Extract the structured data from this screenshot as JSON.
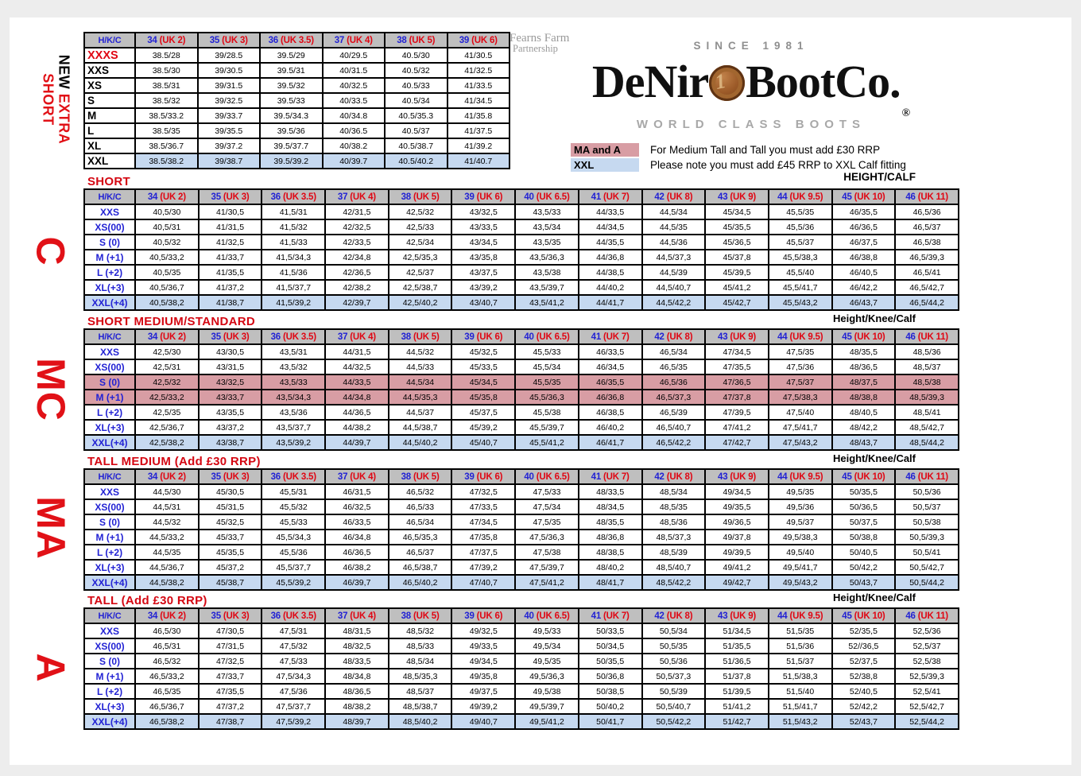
{
  "colors": {
    "accent_red": "#e00613",
    "accent_blue": "#2222d4",
    "header_gray": "#bfbfbf",
    "row_blue": "#c6d9f0",
    "row_pink": "#d89da4"
  },
  "side_labels": {
    "extra_short_black": "NEW",
    "extra_short_red": " EXTRA",
    "extra_short_line2": "SHORT",
    "short_code": "C",
    "short_medium_code": "MC",
    "tall_medium_code": "MA",
    "tall_code": "A"
  },
  "brand": {
    "partnership_line1": "Fearns Farm",
    "partnership_line2": "Partnership",
    "since": "SINCE 1981",
    "name_part1": "DeNir",
    "coin_digit": "1",
    "name_part2": "BootCo.",
    "registered": "®",
    "tagline": "WORLD CLASS BOOTS"
  },
  "notes": {
    "ma_a_key": "MA and A",
    "ma_a_text": "For Medium Tall and Tall you must add £30 RRP",
    "xxl_key": "XXL",
    "xxl_text": "Please note you must add £45 RRP to XXL Calf fitting",
    "height_calf": "HEIGHT/CALF",
    "height_knee_calf": "Height/Knee/Calf"
  },
  "tables": [
    {
      "id": "new-extra-short",
      "title": "",
      "header_label": "H/K/C",
      "plain_labels": true,
      "columns": [
        {
          "eu": "34",
          "uk": "(UK 2)"
        },
        {
          "eu": "35",
          "uk": "(UK 3)"
        },
        {
          "eu": "36",
          "uk": "(UK 3.5)"
        },
        {
          "eu": "37",
          "uk": "(UK 4)"
        },
        {
          "eu": "38",
          "uk": "(UK 5)"
        },
        {
          "eu": "39",
          "uk": "(UK 6)"
        }
      ],
      "rows": [
        {
          "label": "XXXS",
          "style": "xxxs",
          "bg": "white",
          "cells": [
            "38.5/28",
            "39/28.5",
            "39.5/29",
            "40/29.5",
            "40.5/30",
            "41/30.5"
          ]
        },
        {
          "label": "XXS",
          "bg": "white",
          "cells": [
            "38.5/30",
            "39/30.5",
            "39.5/31",
            "40/31.5",
            "40.5/32",
            "41/32.5"
          ]
        },
        {
          "label": "XS",
          "bg": "white",
          "cells": [
            "38.5/31",
            "39/31.5",
            "39.5/32",
            "40/32.5",
            "40.5/33",
            "41/33.5"
          ]
        },
        {
          "label": "S",
          "bg": "white",
          "cells": [
            "38.5/32",
            "39/32.5",
            "39.5/33",
            "40/33.5",
            "40.5/34",
            "41/34.5"
          ]
        },
        {
          "label": "M",
          "bg": "white",
          "cells": [
            "38.5/33.2",
            "39/33.7",
            "39.5/34.3",
            "40/34.8",
            "40.5/35.3",
            "41/35.8"
          ]
        },
        {
          "label": "L",
          "bg": "white",
          "cells": [
            "38.5/35",
            "39/35.5",
            "39.5/36",
            "40/36.5",
            "40.5/37",
            "41/37.5"
          ]
        },
        {
          "label": "XL",
          "bg": "white",
          "cells": [
            "38.5/36.7",
            "39/37.2",
            "39.5/37.7",
            "40/38.2",
            "40.5/38.7",
            "41/39.2"
          ]
        },
        {
          "label": "XXL",
          "bg": "blue",
          "cells": [
            "38.5/38.2",
            "39/38.7",
            "39.5/39.2",
            "40/39.7",
            "40.5/40.2",
            "41/40.7"
          ]
        }
      ]
    },
    {
      "id": "short",
      "title": "SHORT",
      "header_label": "H/K/C",
      "plain_labels": false,
      "columns": [
        {
          "eu": "34",
          "uk": "(UK 2)"
        },
        {
          "eu": "35",
          "uk": "(UK 3)"
        },
        {
          "eu": "36",
          "uk": "(UK 3.5)"
        },
        {
          "eu": "37",
          "uk": "(UK 4)"
        },
        {
          "eu": "38",
          "uk": "(UK 5)"
        },
        {
          "eu": "39",
          "uk": "(UK 6)"
        },
        {
          "eu": "40",
          "uk": "(UK 6.5)"
        },
        {
          "eu": "41",
          "uk": "(UK 7)"
        },
        {
          "eu": "42",
          "uk": "(UK 8)"
        },
        {
          "eu": "43",
          "uk": "(UK 9)"
        },
        {
          "eu": "44",
          "uk": "(UK 9.5)"
        },
        {
          "eu": "45",
          "uk": "(UK 10)"
        },
        {
          "eu": "46",
          "uk": "(UK 11)"
        }
      ],
      "rows": [
        {
          "label": "XXS",
          "bg": "white",
          "cells": [
            "40,5/30",
            "41/30,5",
            "41,5/31",
            "42/31,5",
            "42,5/32",
            "43/32,5",
            "43,5/33",
            "44/33,5",
            "44,5/34",
            "45/34,5",
            "45,5/35",
            "46/35,5",
            "46,5/36"
          ]
        },
        {
          "label": "XS(00)",
          "bg": "white",
          "cells": [
            "40,5/31",
            "41/31,5",
            "41,5/32",
            "42/32,5",
            "42,5/33",
            "43/33,5",
            "43,5/34",
            "44/34,5",
            "44,5/35",
            "45/35,5",
            "45,5/36",
            "46/36,5",
            "46,5/37"
          ]
        },
        {
          "label": "S (0)",
          "bg": "white",
          "cells": [
            "40,5/32",
            "41/32,5",
            "41,5/33",
            "42/33,5",
            "42,5/34",
            "43/34,5",
            "43,5/35",
            "44/35,5",
            "44,5/36",
            "45/36,5",
            "45,5/37",
            "46/37,5",
            "46,5/38"
          ]
        },
        {
          "label": "M (+1)",
          "bg": "white",
          "cells": [
            "40,5/33,2",
            "41/33,7",
            "41,5/34,3",
            "42/34,8",
            "42,5/35,3",
            "43/35,8",
            "43,5/36,3",
            "44/36,8",
            "44,5/37,3",
            "45/37,8",
            "45,5/38,3",
            "46/38,8",
            "46,5/39,3"
          ]
        },
        {
          "label": "L (+2)",
          "bg": "white",
          "cells": [
            "40,5/35",
            "41/35,5",
            "41,5/36",
            "42/36,5",
            "42,5/37",
            "43/37,5",
            "43,5/38",
            "44/38,5",
            "44,5/39",
            "45/39,5",
            "45,5/40",
            "46/40,5",
            "46,5/41"
          ]
        },
        {
          "label": "XL(+3)",
          "bg": "white",
          "cells": [
            "40,5/36,7",
            "41/37,2",
            "41,5/37,7",
            "42/38,2",
            "42,5/38,7",
            "43/39,2",
            "43,5/39,7",
            "44/40,2",
            "44,5/40,7",
            "45/41,2",
            "45,5/41,7",
            "46/42,2",
            "46,5/42,7"
          ]
        },
        {
          "label": "XXL(+4)",
          "bg": "blue",
          "cells": [
            "40,5/38,2",
            "41/38,7",
            "41,5/39,2",
            "42/39,7",
            "42,5/40,2",
            "43/40,7",
            "43,5/41,2",
            "44/41,7",
            "44,5/42,2",
            "45/42,7",
            "45,5/43,2",
            "46/43,7",
            "46,5/44,2"
          ]
        }
      ]
    },
    {
      "id": "short-medium-standard",
      "title": "SHORT MEDIUM/STANDARD",
      "header_label": "H/K/C",
      "plain_labels": false,
      "columns": [
        {
          "eu": "34",
          "uk": "(UK 2)"
        },
        {
          "eu": "35",
          "uk": "(UK 3)"
        },
        {
          "eu": "36",
          "uk": "(UK 3.5)"
        },
        {
          "eu": "37",
          "uk": "(UK 4)"
        },
        {
          "eu": "38",
          "uk": "(UK 5)"
        },
        {
          "eu": "39",
          "uk": "(UK 6)"
        },
        {
          "eu": "40",
          "uk": "(UK 6.5)"
        },
        {
          "eu": "41",
          "uk": "(UK 7)"
        },
        {
          "eu": "42",
          "uk": "(UK 8)"
        },
        {
          "eu": "43",
          "uk": "(UK 9)"
        },
        {
          "eu": "44",
          "uk": "(UK 9.5)"
        },
        {
          "eu": "45",
          "uk": "(UK 10)"
        },
        {
          "eu": "46",
          "uk": "(UK 11)"
        }
      ],
      "rows": [
        {
          "label": "XXS",
          "bg": "white",
          "cells": [
            "42,5/30",
            "43/30,5",
            "43,5/31",
            "44/31,5",
            "44,5/32",
            "45/32,5",
            "45,5/33",
            "46/33,5",
            "46,5/34",
            "47/34,5",
            "47,5/35",
            "48/35,5",
            "48,5/36"
          ]
        },
        {
          "label": "XS(00)",
          "bg": "white",
          "cells": [
            "42,5/31",
            "43/31,5",
            "43,5/32",
            "44/32,5",
            "44,5/33",
            "45/33,5",
            "45,5/34",
            "46/34,5",
            "46,5/35",
            "47/35,5",
            "47,5/36",
            "48/36,5",
            "48,5/37"
          ]
        },
        {
          "label": "S (0)",
          "bg": "pink",
          "cells": [
            "42,5/32",
            "43/32,5",
            "43,5/33",
            "44/33,5",
            "44,5/34",
            "45/34,5",
            "45,5/35",
            "46/35,5",
            "46,5/36",
            "47/36,5",
            "47,5/37",
            "48/37,5",
            "48,5/38"
          ]
        },
        {
          "label": "M (+1)",
          "bg": "pink",
          "cells": [
            "42,5/33,2",
            "43/33,7",
            "43,5/34,3",
            "44/34,8",
            "44,5/35,3",
            "45/35,8",
            "45,5/36,3",
            "46/36,8",
            "46,5/37,3",
            "47/37,8",
            "47,5/38,3",
            "48/38,8",
            "48,5/39,3"
          ]
        },
        {
          "label": "L (+2)",
          "bg": "white",
          "cells": [
            "42,5/35",
            "43/35,5",
            "43,5/36",
            "44/36,5",
            "44,5/37",
            "45/37,5",
            "45,5/38",
            "46/38,5",
            "46,5/39",
            "47/39,5",
            "47,5/40",
            "48/40,5",
            "48,5/41"
          ]
        },
        {
          "label": "XL(+3)",
          "bg": "white",
          "cells": [
            "42,5/36,7",
            "43/37,2",
            "43,5/37,7",
            "44/38,2",
            "44,5/38,7",
            "45/39,2",
            "45,5/39,7",
            "46/40,2",
            "46,5/40,7",
            "47/41,2",
            "47,5/41,7",
            "48/42,2",
            "48,5/42,7"
          ]
        },
        {
          "label": "XXL(+4)",
          "bg": "blue",
          "cells": [
            "42,5/38,2",
            "43/38,7",
            "43,5/39,2",
            "44/39,7",
            "44,5/40,2",
            "45/40,7",
            "45,5/41,2",
            "46/41,7",
            "46,5/42,2",
            "47/42,7",
            "47,5/43,2",
            "48/43,7",
            "48,5/44,2"
          ]
        }
      ]
    },
    {
      "id": "tall-medium",
      "title": "TALL MEDIUM (Add £30 RRP)",
      "header_label": "H/K/C",
      "plain_labels": false,
      "columns": [
        {
          "eu": "34",
          "uk": "(UK 2)"
        },
        {
          "eu": "35",
          "uk": "(UK 3)"
        },
        {
          "eu": "36",
          "uk": "(UK 3.5)"
        },
        {
          "eu": "37",
          "uk": "(UK 4)"
        },
        {
          "eu": "38",
          "uk": "(UK 5)"
        },
        {
          "eu": "39",
          "uk": "(UK 6)"
        },
        {
          "eu": "40",
          "uk": "(UK 6.5)"
        },
        {
          "eu": "41",
          "uk": "(UK 7)"
        },
        {
          "eu": "42",
          "uk": "(UK 8)"
        },
        {
          "eu": "43",
          "uk": "(UK 9)"
        },
        {
          "eu": "44",
          "uk": "(UK 9.5)"
        },
        {
          "eu": "45",
          "uk": "(UK 10)"
        },
        {
          "eu": "46",
          "uk": "(UK 11)"
        }
      ],
      "rows": [
        {
          "label": "XXS",
          "bg": "white",
          "cells": [
            "44,5/30",
            "45/30,5",
            "45,5/31",
            "46/31,5",
            "46,5/32",
            "47/32,5",
            "47,5/33",
            "48/33,5",
            "48,5/34",
            "49/34,5",
            "49,5/35",
            "50/35,5",
            "50,5/36"
          ]
        },
        {
          "label": "XS(00)",
          "bg": "white",
          "cells": [
            "44,5/31",
            "45/31,5",
            "45,5/32",
            "46/32,5",
            "46,5/33",
            "47/33,5",
            "47,5/34",
            "48/34,5",
            "48,5/35",
            "49/35,5",
            "49,5/36",
            "50/36,5",
            "50,5/37"
          ]
        },
        {
          "label": "S (0)",
          "bg": "white",
          "cells": [
            "44,5/32",
            "45/32,5",
            "45,5/33",
            "46/33,5",
            "46,5/34",
            "47/34,5",
            "47,5/35",
            "48/35,5",
            "48,5/36",
            "49/36,5",
            "49,5/37",
            "50/37,5",
            "50,5/38"
          ]
        },
        {
          "label": "M (+1)",
          "bg": "white",
          "cells": [
            "44,5/33,2",
            "45/33,7",
            "45,5/34,3",
            "46/34,8",
            "46,5/35,3",
            "47/35,8",
            "47,5/36,3",
            "48/36,8",
            "48,5/37,3",
            "49/37,8",
            "49,5/38,3",
            "50/38,8",
            "50,5/39,3"
          ]
        },
        {
          "label": "L (+2)",
          "bg": "white",
          "cells": [
            "44,5/35",
            "45/35,5",
            "45,5/36",
            "46/36,5",
            "46,5/37",
            "47/37,5",
            "47,5/38",
            "48/38,5",
            "48,5/39",
            "49/39,5",
            "49,5/40",
            "50/40,5",
            "50,5/41"
          ]
        },
        {
          "label": "XL(+3)",
          "bg": "white",
          "cells": [
            "44,5/36,7",
            "45/37,2",
            "45,5/37,7",
            "46/38,2",
            "46,5/38,7",
            "47/39,2",
            "47,5/39,7",
            "48/40,2",
            "48,5/40,7",
            "49/41,2",
            "49,5/41,7",
            "50/42,2",
            "50,5/42,7"
          ]
        },
        {
          "label": "XXL(+4)",
          "bg": "blue",
          "cells": [
            "44,5/38,2",
            "45/38,7",
            "45,5/39,2",
            "46/39,7",
            "46,5/40,2",
            "47/40,7",
            "47,5/41,2",
            "48/41,7",
            "48,5/42,2",
            "49/42,7",
            "49,5/43,2",
            "50/43,7",
            "50,5/44,2"
          ]
        }
      ]
    },
    {
      "id": "tall",
      "title": "TALL (Add £30 RRP)",
      "header_label": "H/K/C",
      "plain_labels": false,
      "columns": [
        {
          "eu": "34",
          "uk": "(UK 2)"
        },
        {
          "eu": "35",
          "uk": "(UK 3)"
        },
        {
          "eu": "36",
          "uk": "(UK 3.5)"
        },
        {
          "eu": "37",
          "uk": "(UK 4)"
        },
        {
          "eu": "38",
          "uk": "(UK 5)"
        },
        {
          "eu": "39",
          "uk": "(UK 6)"
        },
        {
          "eu": "40",
          "uk": "(UK 6.5)"
        },
        {
          "eu": "41",
          "uk": "(UK 7)"
        },
        {
          "eu": "42",
          "uk": "(UK 8)"
        },
        {
          "eu": "43",
          "uk": "(UK 9)"
        },
        {
          "eu": "44",
          "uk": "(UK 9.5)"
        },
        {
          "eu": "45",
          "uk": "(UK 10)"
        },
        {
          "eu": "46",
          "uk": "(UK 11)"
        }
      ],
      "rows": [
        {
          "label": "XXS",
          "bg": "white",
          "cells": [
            "46,5/30",
            "47/30,5",
            "47,5/31",
            "48/31,5",
            "48,5/32",
            "49/32,5",
            "49,5/33",
            "50/33,5",
            "50,5/34",
            "51/34,5",
            "51,5/35",
            "52/35,5",
            "52,5/36"
          ]
        },
        {
          "label": "XS(00)",
          "bg": "white",
          "cells": [
            "46,5/31",
            "47/31,5",
            "47,5/32",
            "48/32,5",
            "48,5/33",
            "49/33,5",
            "49,5/34",
            "50/34,5",
            "50,5/35",
            "51/35,5",
            "51,5/36",
            "52//36,5",
            "52,5/37"
          ]
        },
        {
          "label": "S (0)",
          "bg": "white",
          "cells": [
            "46,5/32",
            "47/32,5",
            "47,5/33",
            "48/33,5",
            "48,5/34",
            "49/34,5",
            "49,5/35",
            "50/35,5",
            "50,5/36",
            "51/36,5",
            "51,5/37",
            "52/37,5",
            "52,5/38"
          ]
        },
        {
          "label": "M (+1)",
          "bg": "white",
          "cells": [
            "46,5/33,2",
            "47/33,7",
            "47,5/34,3",
            "48/34,8",
            "48,5/35,3",
            "49/35,8",
            "49,5/36,3",
            "50/36,8",
            "50,5/37,3",
            "51/37,8",
            "51,5/38,3",
            "52/38,8",
            "52,5/39,3"
          ]
        },
        {
          "label": "L (+2)",
          "bg": "white",
          "cells": [
            "46,5/35",
            "47/35,5",
            "47,5/36",
            "48/36,5",
            "48,5/37",
            "49/37,5",
            "49,5/38",
            "50/38,5",
            "50,5/39",
            "51/39,5",
            "51,5/40",
            "52/40,5",
            "52,5/41"
          ]
        },
        {
          "label": "XL(+3)",
          "bg": "white",
          "cells": [
            "46,5/36,7",
            "47/37,2",
            "47,5/37,7",
            "48/38,2",
            "48,5/38,7",
            "49/39,2",
            "49,5/39,7",
            "50/40,2",
            "50,5/40,7",
            "51/41,2",
            "51,5/41,7",
            "52/42,2",
            "52,5/42,7"
          ]
        },
        {
          "label": "XXL(+4)",
          "bg": "blue",
          "cells": [
            "46,5/38,2",
            "47/38,7",
            "47,5/39,2",
            "48/39,7",
            "48,5/40,2",
            "49/40,7",
            "49,5/41,2",
            "50/41,7",
            "50,5/42,2",
            "51/42,7",
            "51,5/43,2",
            "52/43,7",
            "52,5/44,2"
          ]
        }
      ]
    }
  ]
}
